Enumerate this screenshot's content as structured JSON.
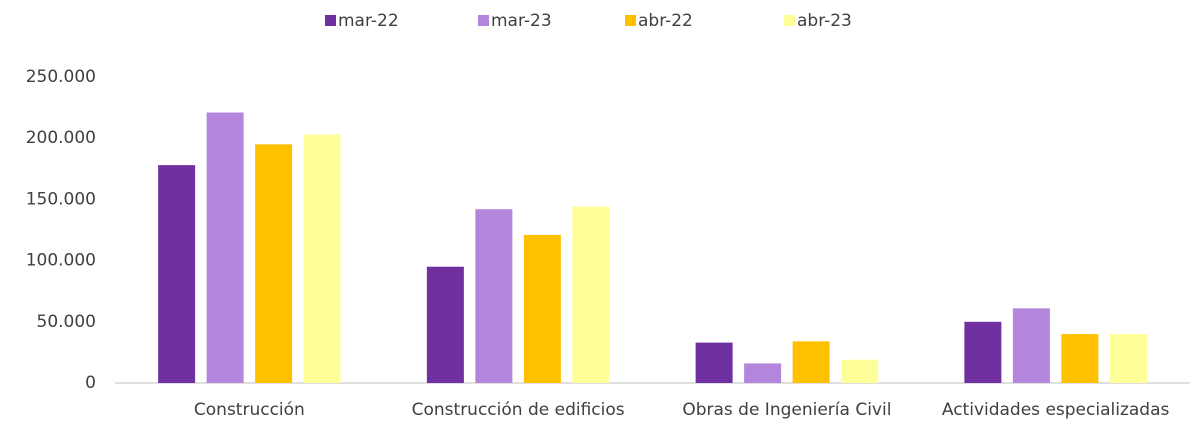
{
  "chart_data": {
    "type": "bar",
    "categories": [
      "Construcción",
      "Construcción de edificios",
      "Obras de Ingeniería Civil",
      "Actividades especializadas"
    ],
    "series": [
      {
        "name": "mar-22",
        "color": "#7030a0",
        "values": [
          178000,
          95000,
          33000,
          50000
        ]
      },
      {
        "name": "mar-23",
        "color": "#b386dc",
        "values": [
          221000,
          142000,
          16000,
          61000
        ]
      },
      {
        "name": "abr-22",
        "color": "#ffc000",
        "values": [
          195000,
          121000,
          34000,
          40000
        ]
      },
      {
        "name": "abr-23",
        "color": "#ffff99",
        "values": [
          203000,
          144000,
          19000,
          40000
        ]
      }
    ],
    "ylim": [
      0,
      250000
    ],
    "yticks": [
      0,
      {
        "value": 50000,
        "label": "50.000"
      },
      {
        "value": 100000,
        "label": "100.000"
      },
      {
        "value": 150000,
        "label": "150.000"
      },
      {
        "value": 200000,
        "label": "200.000"
      },
      {
        "value": 250000,
        "label": "250.000"
      }
    ],
    "grid": false,
    "legend": "top"
  }
}
